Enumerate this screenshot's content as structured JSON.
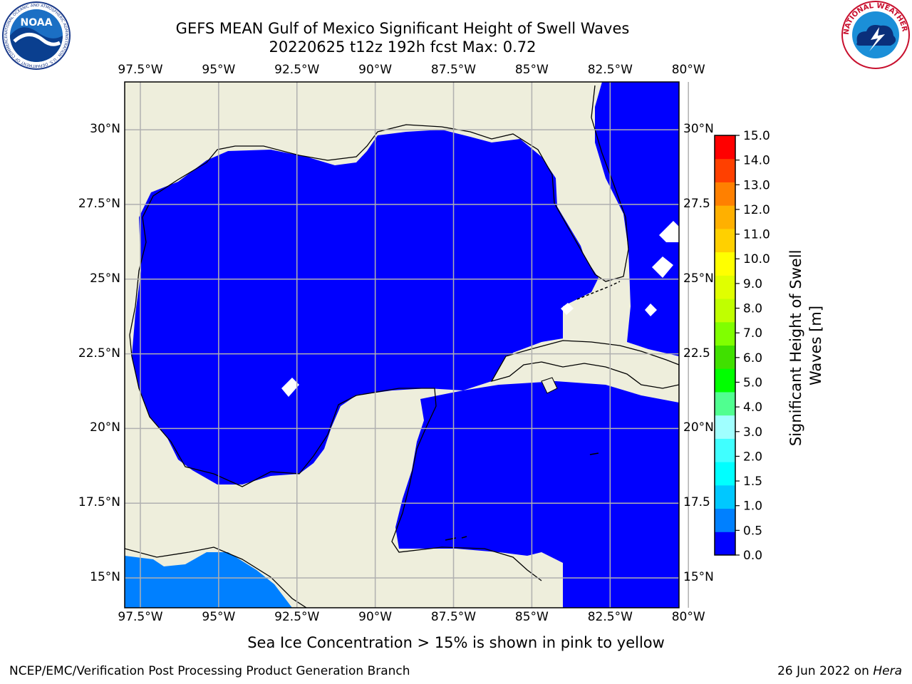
{
  "header": {
    "title_line1": "GEFS MEAN Gulf of Mexico Significant Height of Swell Waves",
    "title_line2": "20220625 t12z 192h fcst   Max: 0.72"
  },
  "logos": {
    "left": "NOAA",
    "left_ring": "NATIONAL OCEANIC AND ATMOSPHERIC ADMINISTRATION · U.S. DEPARTMENT OF COMMERCE",
    "right_ring": "NATIONAL WEATHER SERVICE"
  },
  "map": {
    "lon_labels": [
      "97.5°W",
      "95°W",
      "92.5°W",
      "90°W",
      "87.5°W",
      "85°W",
      "82.5°W",
      "80°W"
    ],
    "lat_labels_left": [
      "30°N",
      "27.5°N",
      "25°N",
      "22.5°N",
      "20°N",
      "17.5°N",
      "15°N"
    ],
    "lat_labels_right": [
      "30°N",
      "27.5",
      "25°N",
      "22.5",
      "20°N",
      "17.5",
      "15°N"
    ],
    "lon_range": [
      -98,
      -80.3
    ],
    "lat_range": [
      14,
      31.6
    ],
    "colors": {
      "land": "#eeeedc",
      "sea_low": "#0000ff",
      "sea_mid": "#0080ff",
      "grid": "#b0b0b0",
      "coast": "#000000"
    }
  },
  "colorbar": {
    "label": "Significant Height of Swell Waves [m]",
    "ticks": [
      "0.0",
      "0.5",
      "1.0",
      "1.5",
      "2.0",
      "3.0",
      "4.0",
      "5.0",
      "6.0",
      "7.0",
      "8.0",
      "9.0",
      "10.0",
      "11.0",
      "12.0",
      "13.0",
      "14.0",
      "15.0"
    ],
    "colors": [
      "#0000ff",
      "#0080ff",
      "#00c8ff",
      "#00ffff",
      "#40ffff",
      "#a0ffff",
      "#50ff90",
      "#00ff00",
      "#40e000",
      "#80ff00",
      "#c0ff00",
      "#e0ff00",
      "#ffff00",
      "#ffd000",
      "#ffb000",
      "#ff8000",
      "#ff4000",
      "#ff0000"
    ]
  },
  "note": "Sea Ice Concentration > 15% is shown in pink to yellow",
  "footer": {
    "left": "NCEP/EMC/Verification Post Processing Product Generation Branch",
    "right_date": "26 Jun 2022 on ",
    "right_host": "Hera"
  }
}
